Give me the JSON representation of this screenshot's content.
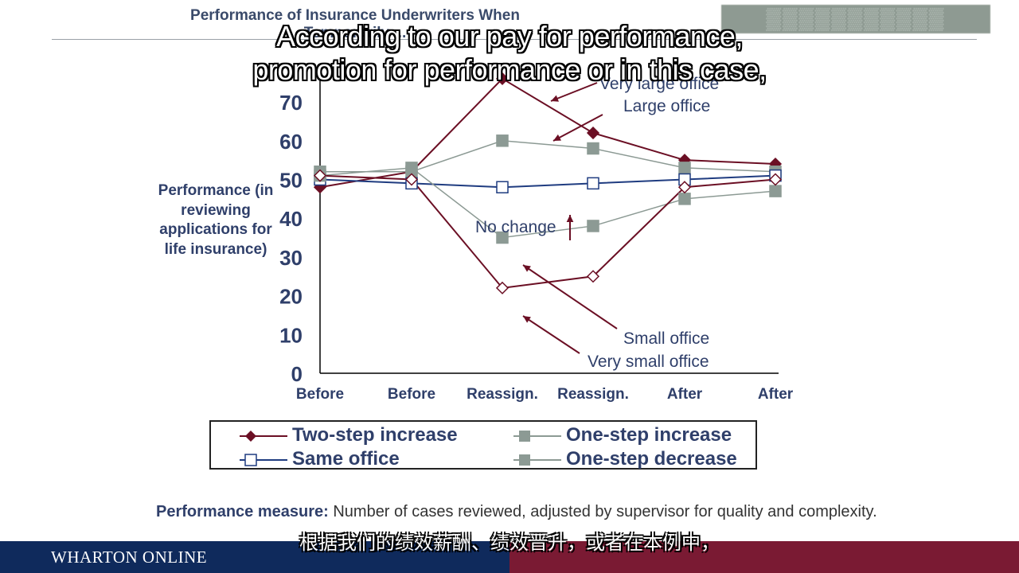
{
  "slide": {
    "title": "Performance of Insurance Underwriters When Temporarily ...",
    "subtitle_en_line1": "According to our pay for performance,",
    "subtitle_en_line2": "promotion for performance or in this case,",
    "subtitle_zh": "根据我们的绩效薪酬、绩效晋升，或者在本例中，",
    "footnote_label": "Performance measure:",
    "footnote_text": " Number of cases reviewed, adjusted by supervisor for quality and complexity.",
    "footer_brand": "WHARTON ONLINE",
    "colors": {
      "footer_left": "#0f2a5c",
      "footer_right": "#7a1a33",
      "title": "#3a4a6a"
    }
  },
  "chart_data": {
    "type": "line",
    "ylabel": "Performance (in reviewing applications for life insurance)",
    "categories": [
      "Before",
      "Before",
      "Reassign.",
      "Reassign.",
      "After",
      "After"
    ],
    "ylim": [
      0,
      80
    ],
    "yticks": [
      0,
      10,
      20,
      30,
      40,
      50,
      60,
      70
    ],
    "series": [
      {
        "name": "Two-step increase",
        "color": "#6b0f24",
        "marker": "diamond-filled",
        "values": [
          48,
          52,
          76,
          62,
          55,
          54
        ]
      },
      {
        "name": "One-step increase",
        "color": "#8c9a94",
        "marker": "square-filled",
        "values": [
          52,
          52,
          60,
          58,
          53,
          52
        ]
      },
      {
        "name": "Same office",
        "color": "#1f3c80",
        "marker": "square-open",
        "values": [
          50,
          49,
          48,
          49,
          50,
          51
        ]
      },
      {
        "name": "One-step decrease",
        "color": "#8c9a94",
        "marker": "square-filled",
        "values": [
          51,
          53,
          35,
          38,
          45,
          47
        ]
      },
      {
        "name": "",
        "color": "#6b0f24",
        "marker": "diamond-open",
        "values": [
          51,
          50,
          22,
          25,
          48,
          50
        ]
      }
    ],
    "annotations": [
      {
        "text": "Very large office"
      },
      {
        "text": "Large office"
      },
      {
        "text": "No change"
      },
      {
        "text": "Small office"
      },
      {
        "text": "Very small office"
      }
    ]
  }
}
